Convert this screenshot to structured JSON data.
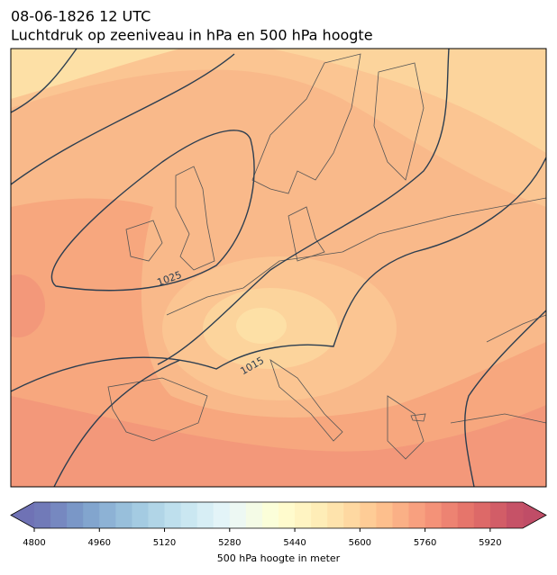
{
  "header": {
    "title": "08-06-1826 12 UTC",
    "subtitle": "Luchtdruk op zeeniveau in hPa en 500 hPa hoogte"
  },
  "map": {
    "contour_labels": [
      "1025",
      "1015"
    ]
  },
  "colorbar": {
    "min": 4800,
    "max": 6000,
    "step": 40,
    "ticks": [
      4800,
      4960,
      5120,
      5280,
      5440,
      5600,
      5760,
      5920
    ],
    "label": "500 hPa hoogte in meter"
  }
}
